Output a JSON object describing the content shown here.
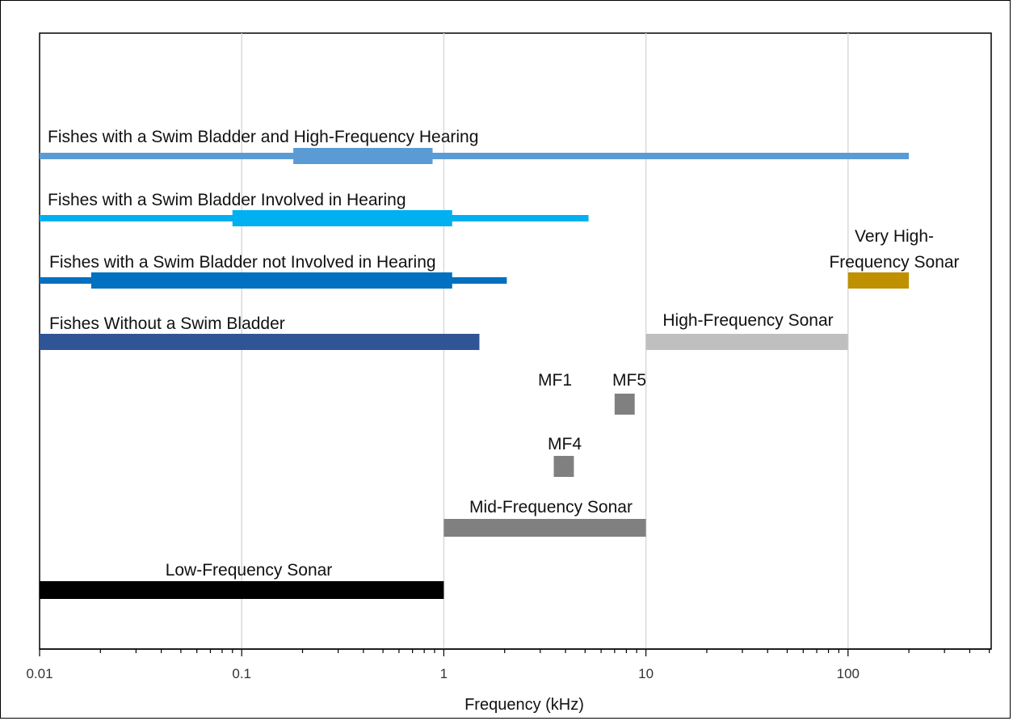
{
  "chart_data": {
    "type": "range-bar",
    "xlabel": "Frequency (kHz)",
    "xscale": "log",
    "xlim": [
      0.01,
      500
    ],
    "grid": "vertical",
    "ticks": [
      {
        "value": 0.01,
        "label": "0.01"
      },
      {
        "value": 0.1,
        "label": "0.1"
      },
      {
        "value": 1,
        "label": "1"
      },
      {
        "value": 10,
        "label": "10"
      },
      {
        "value": 100,
        "label": "100"
      }
    ],
    "rows": [
      {
        "key": "fhf",
        "label": "Fishes with a Swim Bladder and High-Frequency Hearing",
        "color": "#5B9BD5",
        "hearing_range": [
          0.01,
          200
        ],
        "best_sensitivity": [
          0.18,
          0.88
        ]
      },
      {
        "key": "fih",
        "label": "Fishes with a Swim Bladder Involved in Hearing",
        "color": "#00B0F0",
        "hearing_range": [
          0.01,
          5.2
        ],
        "best_sensitivity": [
          0.09,
          1.1
        ]
      },
      {
        "key": "fnih",
        "label": "Fishes with a Swim Bladder not Involved in Hearing",
        "color": "#0070C0",
        "hearing_range": [
          0.01,
          2.05
        ],
        "best_sensitivity": [
          0.018,
          1.1
        ]
      },
      {
        "key": "fwsb",
        "label": "Fishes Without a Swim Bladder",
        "color": "#2F5597",
        "hearing_range": [
          0.01,
          1.5
        ]
      },
      {
        "key": "vhf",
        "label": "Very High-Frequency Sonar",
        "label_lines": [
          "Very High-",
          "Frequency Sonar"
        ],
        "color": "#BF9000",
        "range": [
          100,
          200
        ]
      },
      {
        "key": "hf",
        "label": "High-Frequency Sonar",
        "color": "#BFBFBF",
        "range": [
          10,
          100
        ]
      },
      {
        "key": "mf5",
        "label": "MF5",
        "color": "#808080",
        "range": [
          7.0,
          8.8
        ]
      },
      {
        "key": "mf1",
        "label": "MF1",
        "color": "#808080"
      },
      {
        "key": "mf4",
        "label": "MF4",
        "color": "#808080",
        "range": [
          3.5,
          4.4
        ]
      },
      {
        "key": "mf",
        "label": "Mid-Frequency Sonar",
        "color": "#808080",
        "range": [
          1,
          10
        ]
      },
      {
        "key": "lf",
        "label": "Low-Frequency Sonar",
        "color": "#000000",
        "range": [
          0.01,
          1
        ]
      }
    ]
  }
}
